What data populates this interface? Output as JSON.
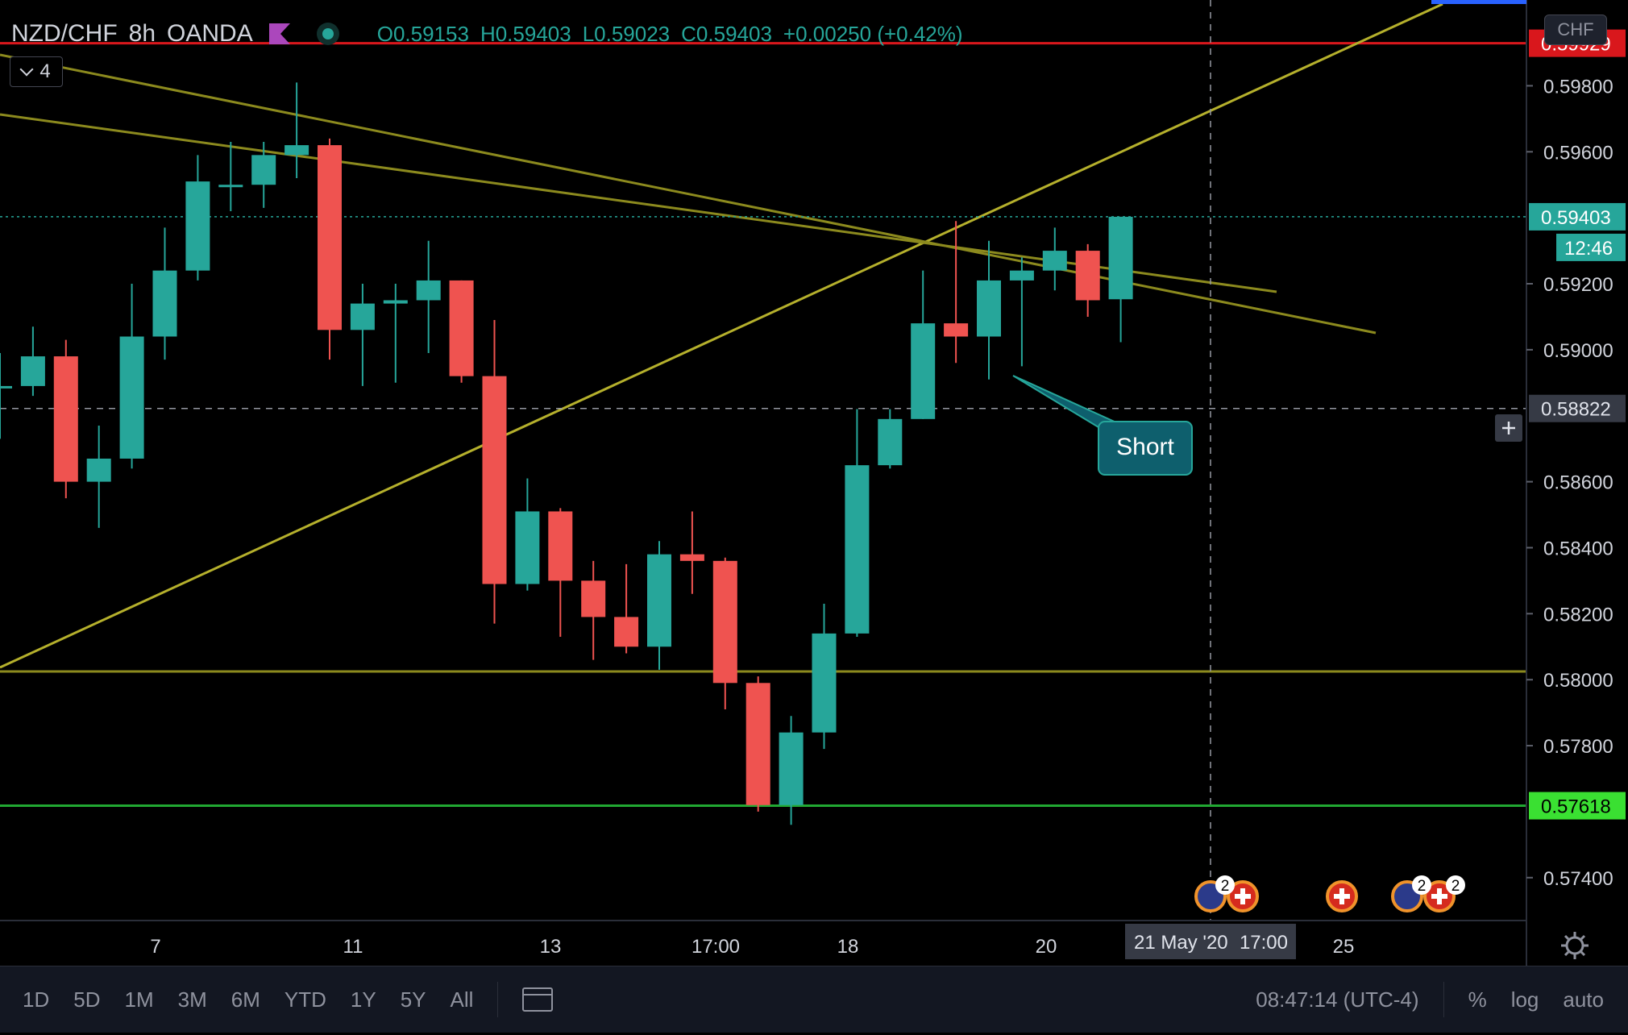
{
  "header": {
    "symbol": "NZD/CHF",
    "timeframe": "8h",
    "source": "OANDA",
    "ohlc": {
      "open": "O0.59153",
      "high": "H0.59403",
      "low": "L0.59023",
      "close": "C0.59403",
      "change": "+0.00250 (+0.42%)"
    },
    "indicator_count": "4"
  },
  "currency_badge": "CHF",
  "colors": {
    "up": "#26a69a",
    "down": "#ef5350",
    "trendline": "#b5b02c",
    "support": "#21a832",
    "resistance": "#d9171c"
  },
  "chart_data": {
    "type": "candlestick",
    "y_ticks": [
      "0.59800",
      "0.59600",
      "0.59200",
      "0.59000",
      "0.58600",
      "0.58400",
      "0.58200",
      "0.58000",
      "0.57800",
      "0.57400"
    ],
    "ylim": [
      0.5727,
      0.6006
    ],
    "x_ticks": [
      "7",
      "11",
      "13",
      "17:00",
      "18",
      "20",
      "25"
    ],
    "candles": [
      {
        "o": 0.5889,
        "h": 0.5899,
        "l": 0.5873,
        "c": 0.5889
      },
      {
        "o": 0.5889,
        "h": 0.5907,
        "l": 0.5886,
        "c": 0.5898
      },
      {
        "o": 0.5898,
        "h": 0.5903,
        "l": 0.5855,
        "c": 0.586
      },
      {
        "o": 0.586,
        "h": 0.5877,
        "l": 0.5846,
        "c": 0.5867
      },
      {
        "o": 0.5867,
        "h": 0.592,
        "l": 0.5864,
        "c": 0.5904
      },
      {
        "o": 0.5904,
        "h": 0.5937,
        "l": 0.5897,
        "c": 0.5924
      },
      {
        "o": 0.5924,
        "h": 0.5959,
        "l": 0.5921,
        "c": 0.5951
      },
      {
        "o": 0.595,
        "h": 0.5963,
        "l": 0.5942,
        "c": 0.595
      },
      {
        "o": 0.595,
        "h": 0.5963,
        "l": 0.5943,
        "c": 0.5959
      },
      {
        "o": 0.5959,
        "h": 0.5981,
        "l": 0.5952,
        "c": 0.5962
      },
      {
        "o": 0.5962,
        "h": 0.5964,
        "l": 0.5897,
        "c": 0.5906
      },
      {
        "o": 0.5906,
        "h": 0.592,
        "l": 0.5889,
        "c": 0.5914
      },
      {
        "o": 0.5914,
        "h": 0.592,
        "l": 0.589,
        "c": 0.5915
      },
      {
        "o": 0.5915,
        "h": 0.5933,
        "l": 0.5899,
        "c": 0.5921
      },
      {
        "o": 0.5921,
        "h": 0.5921,
        "l": 0.589,
        "c": 0.5892
      },
      {
        "o": 0.5892,
        "h": 0.5909,
        "l": 0.5817,
        "c": 0.5829
      },
      {
        "o": 0.5829,
        "h": 0.5861,
        "l": 0.5827,
        "c": 0.5851
      },
      {
        "o": 0.5851,
        "h": 0.5852,
        "l": 0.5813,
        "c": 0.583
      },
      {
        "o": 0.583,
        "h": 0.5836,
        "l": 0.5806,
        "c": 0.5819
      },
      {
        "o": 0.5819,
        "h": 0.5835,
        "l": 0.5808,
        "c": 0.581
      },
      {
        "o": 0.581,
        "h": 0.5842,
        "l": 0.5803,
        "c": 0.5838
      },
      {
        "o": 0.5838,
        "h": 0.5851,
        "l": 0.5826,
        "c": 0.5836
      },
      {
        "o": 0.5836,
        "h": 0.5837,
        "l": 0.5791,
        "c": 0.5799
      },
      {
        "o": 0.5799,
        "h": 0.5801,
        "l": 0.576,
        "c": 0.5762
      },
      {
        "o": 0.5762,
        "h": 0.5789,
        "l": 0.5756,
        "c": 0.5784
      },
      {
        "o": 0.5784,
        "h": 0.5823,
        "l": 0.5779,
        "c": 0.5814
      },
      {
        "o": 0.5814,
        "h": 0.5882,
        "l": 0.5813,
        "c": 0.5865
      },
      {
        "o": 0.5865,
        "h": 0.5882,
        "l": 0.5864,
        "c": 0.5879
      },
      {
        "o": 0.5879,
        "h": 0.5924,
        "l": 0.5879,
        "c": 0.5908
      },
      {
        "o": 0.5908,
        "h": 0.5939,
        "l": 0.5896,
        "c": 0.5904
      },
      {
        "o": 0.5904,
        "h": 0.5933,
        "l": 0.5891,
        "c": 0.5921
      },
      {
        "o": 0.5921,
        "h": 0.5928,
        "l": 0.5895,
        "c": 0.5924
      },
      {
        "o": 0.5924,
        "h": 0.5937,
        "l": 0.5918,
        "c": 0.593
      },
      {
        "o": 0.593,
        "h": 0.5932,
        "l": 0.591,
        "c": 0.5915
      },
      {
        "o": 0.59153,
        "h": 0.59403,
        "l": 0.59023,
        "c": 0.59403
      }
    ],
    "levels": [
      {
        "label": "0.59929",
        "value": 0.59929,
        "color": "#d9171c",
        "style": "solid"
      },
      {
        "label": "0.57618",
        "value": 0.57618,
        "color": "#21a832",
        "style": "solid"
      },
      {
        "value": 0.58025,
        "color": "#8c8a1e",
        "style": "solid"
      }
    ],
    "last_price": {
      "label": "0.59403",
      "value": 0.59403,
      "countdown": "12:46"
    },
    "crosshair": {
      "label": "0.58822",
      "value": 0.58822,
      "date_label": "21 May '20",
      "time_label": "17:00"
    },
    "annotation": {
      "text": "Short"
    },
    "events_badge_count": "2"
  },
  "bottom_bar": {
    "ranges": [
      "1D",
      "5D",
      "1M",
      "3M",
      "6M",
      "YTD",
      "1Y",
      "5Y",
      "All"
    ],
    "clock": "08:47:14 (UTC-4)",
    "percent": "%",
    "log": "log",
    "auto": "auto"
  }
}
